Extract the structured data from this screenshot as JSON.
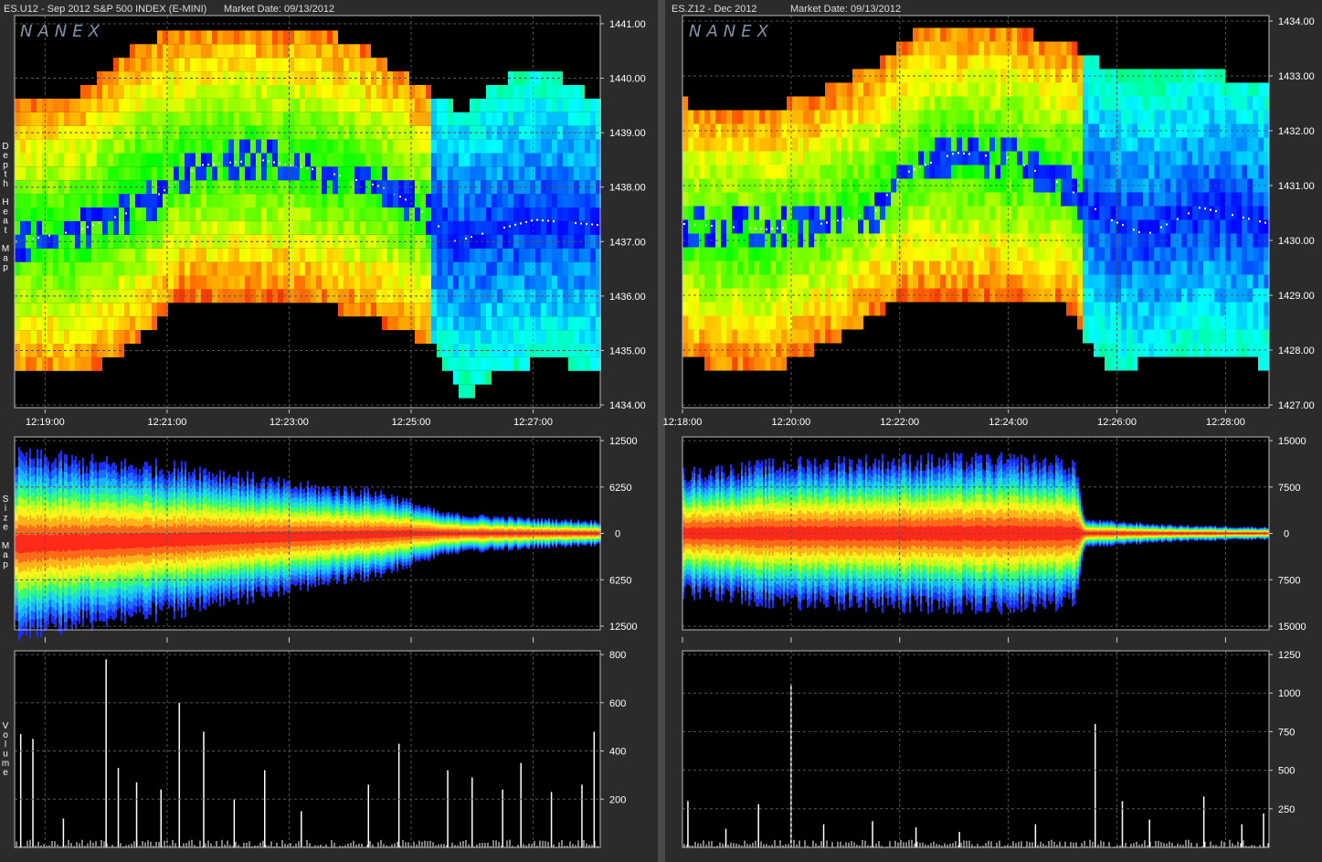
{
  "chart_data": [
    {
      "type": "heatmap",
      "panel": "left",
      "symbol": "ES.U12",
      "title": "ES.U12 - Sep 2012 S&P 500 INDEX (E-MINI)",
      "market_date": "Market Date: 09/13/2012",
      "logo": "NANEX",
      "depth_label": [
        "D",
        "e",
        "p",
        "t",
        "h",
        "",
        "H",
        "e",
        "a",
        "t",
        "",
        "M",
        "a",
        "p"
      ],
      "size_label": [
        "S",
        "i",
        "z",
        "e",
        "",
        "M",
        "a",
        "p"
      ],
      "volume_label": [
        "V",
        "o",
        "l",
        "u",
        "m",
        "e"
      ],
      "time_ticks": [
        "12:19:00",
        "12:21:00",
        "12:23:00",
        "12:25:00",
        "12:27:00"
      ],
      "price_ticks": [
        "1441.00",
        "1440.00",
        "1439.00",
        "1438.00",
        "1437.00",
        "1436.00",
        "1435.00",
        "1434.00"
      ],
      "size_ticks": [
        "12500",
        "6250",
        "0",
        "6250",
        "12500"
      ],
      "volume_ticks": [
        "800",
        "600",
        "400",
        "200"
      ],
      "time_range_min": [
        18.5,
        28.1
      ],
      "price_range": [
        1433.95,
        1441.15
      ],
      "mid_price": [
        {
          "t": 18.5,
          "p": 1437.0
        },
        {
          "t": 19.5,
          "p": 1437.2
        },
        {
          "t": 20.5,
          "p": 1437.6
        },
        {
          "t": 21.0,
          "p": 1438.0
        },
        {
          "t": 21.5,
          "p": 1438.4
        },
        {
          "t": 22.5,
          "p": 1438.5
        },
        {
          "t": 23.5,
          "p": 1438.3
        },
        {
          "t": 24.5,
          "p": 1438.0
        },
        {
          "t": 25.0,
          "p": 1437.7
        },
        {
          "t": 25.7,
          "p": 1437.0
        },
        {
          "t": 26.3,
          "p": 1437.2
        },
        {
          "t": 27.0,
          "p": 1437.4
        },
        {
          "t": 28.1,
          "p": 1437.3
        }
      ],
      "book_top": [
        {
          "t": 18.5,
          "p": 1439.6
        },
        {
          "t": 19.5,
          "p": 1439.7
        },
        {
          "t": 20.2,
          "p": 1440.4
        },
        {
          "t": 21.0,
          "p": 1440.9
        },
        {
          "t": 22.5,
          "p": 1441.0
        },
        {
          "t": 24.0,
          "p": 1440.7
        },
        {
          "t": 24.8,
          "p": 1440.1
        },
        {
          "t": 25.8,
          "p": 1439.4
        },
        {
          "t": 26.5,
          "p": 1440.0
        },
        {
          "t": 27.3,
          "p": 1440.1
        },
        {
          "t": 28.1,
          "p": 1439.5
        }
      ],
      "book_bottom": [
        {
          "t": 18.5,
          "p": 1434.6
        },
        {
          "t": 19.5,
          "p": 1434.5
        },
        {
          "t": 20.5,
          "p": 1435.2
        },
        {
          "t": 21.2,
          "p": 1436.0
        },
        {
          "t": 23.0,
          "p": 1436.0
        },
        {
          "t": 24.5,
          "p": 1435.5
        },
        {
          "t": 25.3,
          "p": 1435.1
        },
        {
          "t": 25.8,
          "p": 1434.1
        },
        {
          "t": 26.3,
          "p": 1434.5
        },
        {
          "t": 27.0,
          "p": 1434.8
        },
        {
          "t": 28.1,
          "p": 1434.7
        }
      ],
      "size_envelope_max": [
        {
          "t": 18.5,
          "v": 11000
        },
        {
          "t": 20.0,
          "v": 9800
        },
        {
          "t": 21.5,
          "v": 8800
        },
        {
          "t": 23.0,
          "v": 6500
        },
        {
          "t": 24.5,
          "v": 5200
        },
        {
          "t": 25.5,
          "v": 2500
        },
        {
          "t": 27.0,
          "v": 1800
        },
        {
          "t": 28.1,
          "v": 1500
        }
      ],
      "volume_max": 800,
      "volume_spikes": [
        {
          "t": 18.6,
          "v": 470
        },
        {
          "t": 18.8,
          "v": 450
        },
        {
          "t": 19.3,
          "v": 120
        },
        {
          "t": 20.0,
          "v": 780
        },
        {
          "t": 20.2,
          "v": 330
        },
        {
          "t": 20.5,
          "v": 270
        },
        {
          "t": 20.9,
          "v": 240
        },
        {
          "t": 21.2,
          "v": 600
        },
        {
          "t": 21.6,
          "v": 480
        },
        {
          "t": 22.1,
          "v": 200
        },
        {
          "t": 22.6,
          "v": 320
        },
        {
          "t": 23.2,
          "v": 150
        },
        {
          "t": 24.3,
          "v": 260
        },
        {
          "t": 24.8,
          "v": 430
        },
        {
          "t": 25.6,
          "v": 320
        },
        {
          "t": 26.0,
          "v": 290
        },
        {
          "t": 26.5,
          "v": 240
        },
        {
          "t": 26.8,
          "v": 350
        },
        {
          "t": 27.3,
          "v": 230
        },
        {
          "t": 27.8,
          "v": 260
        },
        {
          "t": 28.0,
          "v": 480
        }
      ]
    },
    {
      "type": "heatmap",
      "panel": "right",
      "symbol": "ES.Z12",
      "title": "ES.Z12 - Dec 2012",
      "market_date": "Market Date: 09/13/2012",
      "logo": "NANEX",
      "depth_label": [
        "D",
        "e",
        "p",
        "t",
        "h",
        "",
        "H",
        "e",
        "a",
        "t",
        "",
        "M",
        "a",
        "p"
      ],
      "size_label": [
        "S",
        "i",
        "z",
        "e",
        "",
        "M",
        "a",
        "p"
      ],
      "volume_label": [
        "V",
        "o",
        "l",
        "u",
        "m",
        "e"
      ],
      "time_ticks": [
        "12:18:00",
        "12:20:00",
        "12:22:00",
        "12:24:00",
        "12:26:00",
        "12:28:00"
      ],
      "price_ticks": [
        "1434.00",
        "1433.00",
        "1432.00",
        "1431.00",
        "1430.00",
        "1429.00",
        "1428.00",
        "1427.00"
      ],
      "size_ticks": [
        "15000",
        "7500",
        "0",
        "7500",
        "15000"
      ],
      "volume_ticks": [
        "1250",
        "1000",
        "750",
        "500",
        "250"
      ],
      "time_range_min": [
        18.0,
        28.8
      ],
      "price_range": [
        1426.95,
        1434.1
      ],
      "mid_price": [
        {
          "t": 18.0,
          "p": 1430.3
        },
        {
          "t": 19.5,
          "p": 1430.2
        },
        {
          "t": 20.5,
          "p": 1430.3
        },
        {
          "t": 21.5,
          "p": 1430.5
        },
        {
          "t": 22.0,
          "p": 1431.2
        },
        {
          "t": 23.0,
          "p": 1431.6
        },
        {
          "t": 24.0,
          "p": 1431.5
        },
        {
          "t": 25.0,
          "p": 1431.0
        },
        {
          "t": 25.8,
          "p": 1430.4
        },
        {
          "t": 26.5,
          "p": 1430.1
        },
        {
          "t": 27.5,
          "p": 1430.6
        },
        {
          "t": 28.8,
          "p": 1430.3
        }
      ],
      "book_top": [
        {
          "t": 18.0,
          "p": 1432.5
        },
        {
          "t": 19.5,
          "p": 1432.4
        },
        {
          "t": 20.5,
          "p": 1432.7
        },
        {
          "t": 21.5,
          "p": 1433.2
        },
        {
          "t": 22.5,
          "p": 1434.0
        },
        {
          "t": 24.0,
          "p": 1433.9
        },
        {
          "t": 25.2,
          "p": 1433.5
        },
        {
          "t": 26.0,
          "p": 1433.0
        },
        {
          "t": 27.5,
          "p": 1433.1
        },
        {
          "t": 28.8,
          "p": 1432.8
        }
      ],
      "book_bottom": [
        {
          "t": 18.0,
          "p": 1427.8
        },
        {
          "t": 19.5,
          "p": 1427.6
        },
        {
          "t": 21.0,
          "p": 1428.3
        },
        {
          "t": 22.0,
          "p": 1429.0
        },
        {
          "t": 23.5,
          "p": 1429.0
        },
        {
          "t": 25.0,
          "p": 1428.8
        },
        {
          "t": 25.8,
          "p": 1427.6
        },
        {
          "t": 26.5,
          "p": 1427.8
        },
        {
          "t": 27.5,
          "p": 1428.0
        },
        {
          "t": 28.8,
          "p": 1427.7
        }
      ],
      "size_envelope_max": [
        {
          "t": 18.0,
          "v": 9000
        },
        {
          "t": 20.0,
          "v": 10500
        },
        {
          "t": 22.0,
          "v": 11000
        },
        {
          "t": 24.0,
          "v": 11000
        },
        {
          "t": 25.2,
          "v": 10500
        },
        {
          "t": 25.4,
          "v": 2000
        },
        {
          "t": 27.0,
          "v": 1200
        },
        {
          "t": 28.8,
          "v": 900
        }
      ],
      "volume_max": 1250,
      "volume_spikes": [
        {
          "t": 18.1,
          "v": 300
        },
        {
          "t": 18.8,
          "v": 120
        },
        {
          "t": 19.4,
          "v": 280
        },
        {
          "t": 20.0,
          "v": 1060
        },
        {
          "t": 20.6,
          "v": 150
        },
        {
          "t": 21.5,
          "v": 170
        },
        {
          "t": 22.3,
          "v": 130
        },
        {
          "t": 23.1,
          "v": 100
        },
        {
          "t": 24.5,
          "v": 150
        },
        {
          "t": 25.6,
          "v": 800
        },
        {
          "t": 26.1,
          "v": 300
        },
        {
          "t": 26.6,
          "v": 180
        },
        {
          "t": 27.6,
          "v": 330
        },
        {
          "t": 28.3,
          "v": 150
        },
        {
          "t": 28.7,
          "v": 220
        }
      ]
    }
  ]
}
